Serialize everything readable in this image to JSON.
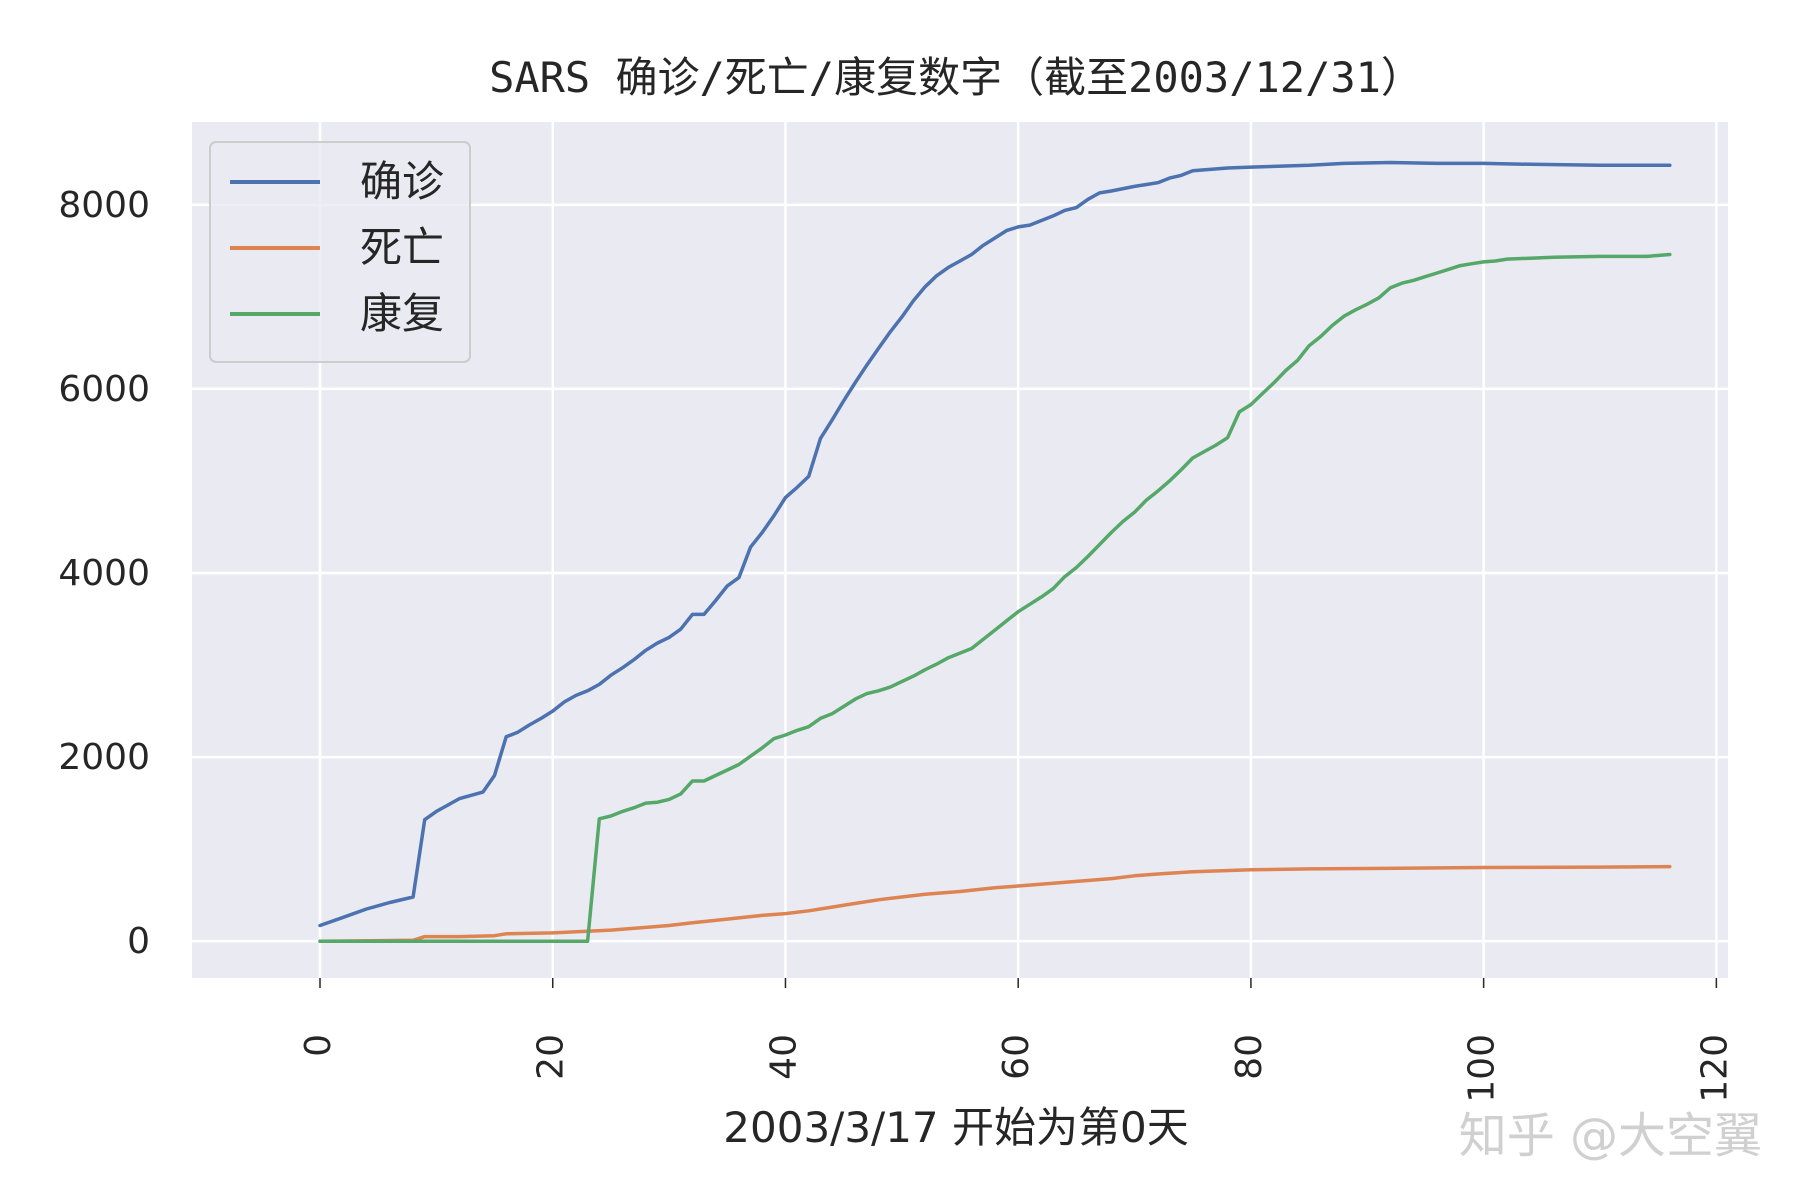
{
  "watermark": "知乎 @大空翼",
  "chart_data": {
    "type": "line",
    "title": "SARS 确诊/死亡/康复数字（截至2003/12/31）",
    "xlabel": "2003/3/17 开始为第0天",
    "ylabel": "",
    "xlim": [
      -11,
      121
    ],
    "ylim": [
      -400,
      8900
    ],
    "xticks": [
      0,
      20,
      40,
      60,
      80,
      100,
      120
    ],
    "yticks": [
      0,
      2000,
      4000,
      6000,
      8000
    ],
    "grid": true,
    "background": "#eaeaf2",
    "legend_position": "upper-left",
    "series": [
      {
        "name": "确诊",
        "color": "#4c72b0",
        "points": [
          [
            0,
            170
          ],
          [
            2,
            260
          ],
          [
            4,
            350
          ],
          [
            6,
            420
          ],
          [
            8,
            480
          ],
          [
            9,
            1320
          ],
          [
            10,
            1410
          ],
          [
            11,
            1480
          ],
          [
            12,
            1550
          ],
          [
            14,
            1620
          ],
          [
            15,
            1800
          ],
          [
            16,
            2220
          ],
          [
            17,
            2270
          ],
          [
            18,
            2350
          ],
          [
            19,
            2420
          ],
          [
            20,
            2500
          ],
          [
            21,
            2600
          ],
          [
            22,
            2670
          ],
          [
            23,
            2720
          ],
          [
            24,
            2790
          ],
          [
            25,
            2890
          ],
          [
            26,
            2970
          ],
          [
            27,
            3060
          ],
          [
            28,
            3160
          ],
          [
            29,
            3240
          ],
          [
            30,
            3300
          ],
          [
            31,
            3390
          ],
          [
            32,
            3550
          ],
          [
            33,
            3550
          ],
          [
            34,
            3700
          ],
          [
            35,
            3860
          ],
          [
            36,
            3950
          ],
          [
            37,
            4280
          ],
          [
            38,
            4440
          ],
          [
            39,
            4620
          ],
          [
            40,
            4820
          ],
          [
            41,
            4930
          ],
          [
            42,
            5050
          ],
          [
            43,
            5460
          ],
          [
            44,
            5660
          ],
          [
            45,
            5870
          ],
          [
            46,
            6070
          ],
          [
            47,
            6260
          ],
          [
            48,
            6440
          ],
          [
            49,
            6620
          ],
          [
            50,
            6780
          ],
          [
            51,
            6960
          ],
          [
            52,
            7110
          ],
          [
            53,
            7230
          ],
          [
            54,
            7320
          ],
          [
            55,
            7390
          ],
          [
            56,
            7460
          ],
          [
            57,
            7560
          ],
          [
            58,
            7640
          ],
          [
            59,
            7720
          ],
          [
            60,
            7760
          ],
          [
            61,
            7780
          ],
          [
            62,
            7830
          ],
          [
            63,
            7880
          ],
          [
            64,
            7940
          ],
          [
            65,
            7970
          ],
          [
            66,
            8060
          ],
          [
            67,
            8130
          ],
          [
            68,
            8150
          ],
          [
            70,
            8200
          ],
          [
            72,
            8240
          ],
          [
            73,
            8290
          ],
          [
            74,
            8320
          ],
          [
            75,
            8370
          ],
          [
            78,
            8400
          ],
          [
            80,
            8410
          ],
          [
            85,
            8430
          ],
          [
            88,
            8450
          ],
          [
            92,
            8460
          ],
          [
            96,
            8450
          ],
          [
            100,
            8450
          ],
          [
            104,
            8440
          ],
          [
            110,
            8430
          ],
          [
            116,
            8430
          ]
        ]
      },
      {
        "name": "死亡",
        "color": "#dd8452",
        "points": [
          [
            0,
            0
          ],
          [
            8,
            10
          ],
          [
            9,
            50
          ],
          [
            12,
            50
          ],
          [
            15,
            60
          ],
          [
            16,
            80
          ],
          [
            20,
            90
          ],
          [
            25,
            120
          ],
          [
            28,
            150
          ],
          [
            30,
            170
          ],
          [
            32,
            200
          ],
          [
            35,
            240
          ],
          [
            38,
            280
          ],
          [
            40,
            300
          ],
          [
            42,
            330
          ],
          [
            44,
            370
          ],
          [
            46,
            410
          ],
          [
            48,
            450
          ],
          [
            50,
            480
          ],
          [
            52,
            510
          ],
          [
            55,
            540
          ],
          [
            58,
            580
          ],
          [
            60,
            600
          ],
          [
            63,
            630
          ],
          [
            65,
            650
          ],
          [
            68,
            680
          ],
          [
            70,
            710
          ],
          [
            72,
            730
          ],
          [
            75,
            755
          ],
          [
            80,
            775
          ],
          [
            85,
            785
          ],
          [
            90,
            790
          ],
          [
            95,
            795
          ],
          [
            100,
            800
          ],
          [
            110,
            805
          ],
          [
            116,
            810
          ]
        ]
      },
      {
        "name": "康复",
        "color": "#55a868",
        "points": [
          [
            0,
            0
          ],
          [
            23,
            0
          ],
          [
            24,
            1330
          ],
          [
            25,
            1360
          ],
          [
            26,
            1410
          ],
          [
            27,
            1450
          ],
          [
            28,
            1500
          ],
          [
            29,
            1510
          ],
          [
            30,
            1540
          ],
          [
            31,
            1600
          ],
          [
            32,
            1740
          ],
          [
            33,
            1740
          ],
          [
            34,
            1800
          ],
          [
            35,
            1860
          ],
          [
            36,
            1920
          ],
          [
            37,
            2010
          ],
          [
            38,
            2100
          ],
          [
            39,
            2200
          ],
          [
            40,
            2240
          ],
          [
            41,
            2290
          ],
          [
            42,
            2330
          ],
          [
            43,
            2420
          ],
          [
            44,
            2470
          ],
          [
            45,
            2550
          ],
          [
            46,
            2630
          ],
          [
            47,
            2690
          ],
          [
            48,
            2720
          ],
          [
            49,
            2760
          ],
          [
            50,
            2820
          ],
          [
            51,
            2880
          ],
          [
            52,
            2950
          ],
          [
            53,
            3010
          ],
          [
            54,
            3080
          ],
          [
            55,
            3130
          ],
          [
            56,
            3180
          ],
          [
            57,
            3280
          ],
          [
            58,
            3380
          ],
          [
            59,
            3480
          ],
          [
            60,
            3580
          ],
          [
            61,
            3660
          ],
          [
            62,
            3740
          ],
          [
            63,
            3830
          ],
          [
            64,
            3960
          ],
          [
            65,
            4060
          ],
          [
            66,
            4180
          ],
          [
            67,
            4310
          ],
          [
            68,
            4440
          ],
          [
            69,
            4560
          ],
          [
            70,
            4660
          ],
          [
            71,
            4790
          ],
          [
            72,
            4890
          ],
          [
            73,
            5000
          ],
          [
            74,
            5120
          ],
          [
            75,
            5250
          ],
          [
            76,
            5320
          ],
          [
            77,
            5390
          ],
          [
            78,
            5470
          ],
          [
            79,
            5750
          ],
          [
            80,
            5830
          ],
          [
            81,
            5950
          ],
          [
            82,
            6070
          ],
          [
            83,
            6200
          ],
          [
            84,
            6310
          ],
          [
            85,
            6470
          ],
          [
            86,
            6570
          ],
          [
            87,
            6690
          ],
          [
            88,
            6790
          ],
          [
            89,
            6860
          ],
          [
            90,
            6920
          ],
          [
            91,
            6990
          ],
          [
            92,
            7100
          ],
          [
            93,
            7150
          ],
          [
            94,
            7180
          ],
          [
            95,
            7220
          ],
          [
            96,
            7260
          ],
          [
            97,
            7300
          ],
          [
            98,
            7340
          ],
          [
            99,
            7360
          ],
          [
            100,
            7380
          ],
          [
            101,
            7390
          ],
          [
            102,
            7410
          ],
          [
            104,
            7420
          ],
          [
            106,
            7430
          ],
          [
            110,
            7440
          ],
          [
            114,
            7440
          ],
          [
            116,
            7460
          ]
        ]
      }
    ]
  }
}
